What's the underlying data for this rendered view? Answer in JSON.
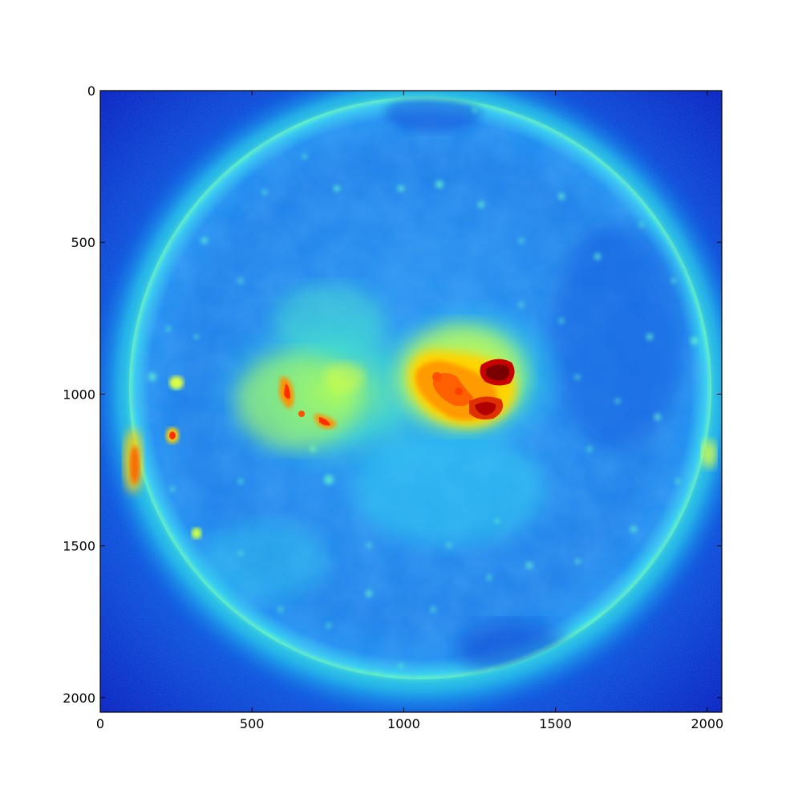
{
  "figure": {
    "image_extent": {
      "x": [
        0,
        2048
      ],
      "y": [
        0,
        2048
      ]
    },
    "y_axis_inverted": true,
    "colormap": "jet",
    "colors": {
      "background_low": "#0000b8",
      "disk_base": "#1f86f2",
      "limb_glow": "#3ff0d8",
      "active_yellow": "#ffe000",
      "active_orange": "#ff7000",
      "active_red": "#cc0000",
      "core_dark_red": "#7a0000"
    },
    "x_ticks": [
      {
        "value": 0,
        "label": "0"
      },
      {
        "value": 500,
        "label": "500"
      },
      {
        "value": 1000,
        "label": "1000"
      },
      {
        "value": 1500,
        "label": "1500"
      },
      {
        "value": 2000,
        "label": "2000"
      }
    ],
    "y_ticks": [
      {
        "value": 0,
        "label": "0"
      },
      {
        "value": 500,
        "label": "500"
      },
      {
        "value": 1000,
        "label": "1000"
      },
      {
        "value": 1500,
        "label": "1500"
      },
      {
        "value": 2000,
        "label": "2000"
      }
    ]
  }
}
